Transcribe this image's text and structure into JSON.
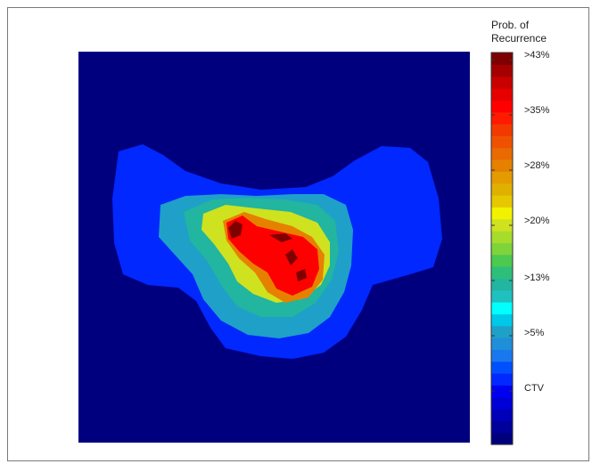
{
  "chart_data": {
    "type": "heatmap",
    "title": "",
    "xlabel": "",
    "ylabel": "",
    "colorbar": {
      "title": [
        "Prob. of",
        "Recurrence"
      ],
      "tick_labels": [
        ">43%",
        ">35%",
        ">28%",
        ">20%",
        ">13%",
        ">5%",
        "CTV"
      ],
      "levels_low_to_high": [
        "#00007f",
        "#00009a",
        "#0000b8",
        "#0000d6",
        "#0000f0",
        "#0028ff",
        "#0050ff",
        "#1a78ee",
        "#1e8fd8",
        "#1fa0c8",
        "#00c8e8",
        "#00ffff",
        "#20c0c0",
        "#22b5a0",
        "#2dbf7a",
        "#4cc94f",
        "#7fd43c",
        "#a8dc2c",
        "#cfe21f",
        "#f2f200",
        "#e6c800",
        "#e0b000",
        "#e59b00",
        "#e68100",
        "#e86a00",
        "#ee5200",
        "#f23a00",
        "#ff1a00",
        "#ff0000",
        "#e60000",
        "#c80000",
        "#a50000",
        "#7f0000"
      ]
    },
    "background_color": "#00007f",
    "regions": [
      {
        "level": "CTV",
        "color": "#0028ff"
      },
      {
        "level": ">5%",
        "color": "#1fa0c8"
      },
      {
        "level": ">13%",
        "color": "#22b5a0"
      },
      {
        "level": ">20%",
        "color": "#cfe21f"
      },
      {
        "level": ">28%",
        "color": "#e68100"
      },
      {
        "level": ">35%",
        "color": "#ff0000"
      },
      {
        "level": ">43%",
        "color": "#7f0000"
      }
    ]
  }
}
